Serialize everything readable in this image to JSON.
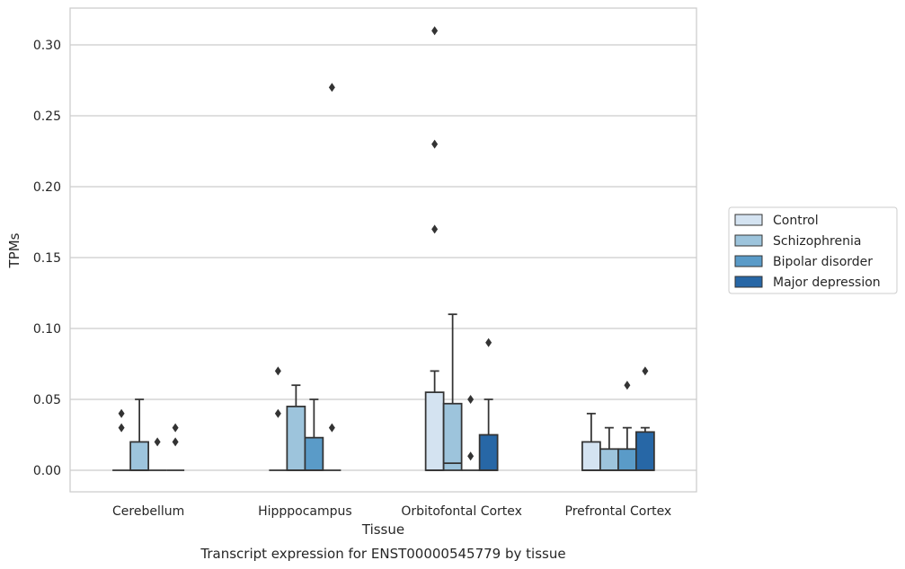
{
  "chart_data": {
    "type": "box",
    "title": "",
    "caption": "Transcript expression for ENST00000545779 by tissue",
    "xlabel": "Tissue",
    "ylabel": "TPMs",
    "ylim": [
      -0.015,
      0.326
    ],
    "yticks": [
      0.0,
      0.05,
      0.1,
      0.15,
      0.2,
      0.25,
      0.3
    ],
    "ytick_labels": [
      "0.00",
      "0.05",
      "0.10",
      "0.15",
      "0.20",
      "0.25",
      "0.30"
    ],
    "grid": "horizontal",
    "legend_position": "right",
    "categories": [
      "Cerebellum",
      "Hipppocampus",
      "Orbitofontal Cortex",
      "Prefrontal Cortex"
    ],
    "series": [
      {
        "name": "Control",
        "color": "#d4e3f1",
        "boxes": [
          {
            "q1": 0.0,
            "median": 0.0,
            "q3": 0.0,
            "whisker_low": 0.0,
            "whisker_high": 0.0,
            "outliers": [
              0.03,
              0.04
            ]
          },
          {
            "q1": 0.0,
            "median": 0.0,
            "q3": 0.0,
            "whisker_low": 0.0,
            "whisker_high": 0.0,
            "outliers": [
              0.04,
              0.07
            ]
          },
          {
            "q1": 0.0,
            "median": 0.0,
            "q3": 0.055,
            "whisker_low": 0.0,
            "whisker_high": 0.07,
            "outliers": [
              0.17,
              0.23,
              0.31
            ]
          },
          {
            "q1": 0.0,
            "median": 0.0,
            "q3": 0.02,
            "whisker_low": 0.0,
            "whisker_high": 0.04,
            "outliers": []
          }
        ]
      },
      {
        "name": "Schizophrenia",
        "color": "#9dc4dc",
        "boxes": [
          {
            "q1": 0.0,
            "median": 0.0,
            "q3": 0.02,
            "whisker_low": 0.0,
            "whisker_high": 0.05,
            "outliers": []
          },
          {
            "q1": 0.0,
            "median": 0.0,
            "q3": 0.045,
            "whisker_low": 0.0,
            "whisker_high": 0.06,
            "outliers": []
          },
          {
            "q1": 0.0,
            "median": 0.005,
            "q3": 0.047,
            "whisker_low": 0.0,
            "whisker_high": 0.11,
            "outliers": []
          },
          {
            "q1": 0.0,
            "median": 0.0,
            "q3": 0.015,
            "whisker_low": 0.0,
            "whisker_high": 0.03,
            "outliers": []
          }
        ]
      },
      {
        "name": "Bipolar disorder",
        "color": "#5a9bc8",
        "boxes": [
          {
            "q1": 0.0,
            "median": 0.0,
            "q3": 0.0,
            "whisker_low": 0.0,
            "whisker_high": 0.0,
            "outliers": [
              0.02
            ]
          },
          {
            "q1": 0.0,
            "median": 0.0,
            "q3": 0.023,
            "whisker_low": 0.0,
            "whisker_high": 0.05,
            "outliers": []
          },
          {
            "q1": 0.0,
            "median": 0.0,
            "q3": 0.0,
            "whisker_low": 0.0,
            "whisker_high": 0.0,
            "outliers": [
              0.01,
              0.05
            ]
          },
          {
            "q1": 0.0,
            "median": 0.0,
            "q3": 0.015,
            "whisker_low": 0.0,
            "whisker_high": 0.03,
            "outliers": [
              0.06
            ]
          }
        ]
      },
      {
        "name": "Major depression",
        "color": "#2767a6",
        "boxes": [
          {
            "q1": 0.0,
            "median": 0.0,
            "q3": 0.0,
            "whisker_low": 0.0,
            "whisker_high": 0.0,
            "outliers": [
              0.02,
              0.03
            ]
          },
          {
            "q1": 0.0,
            "median": 0.0,
            "q3": 0.0,
            "whisker_low": 0.0,
            "whisker_high": 0.0,
            "outliers": [
              0.03,
              0.27
            ]
          },
          {
            "q1": 0.0,
            "median": 0.0,
            "q3": 0.025,
            "whisker_low": 0.0,
            "whisker_high": 0.05,
            "outliers": [
              0.09
            ]
          },
          {
            "q1": 0.0,
            "median": 0.0,
            "q3": 0.027,
            "whisker_low": 0.0,
            "whisker_high": 0.03,
            "outliers": [
              0.07
            ]
          }
        ]
      }
    ]
  }
}
